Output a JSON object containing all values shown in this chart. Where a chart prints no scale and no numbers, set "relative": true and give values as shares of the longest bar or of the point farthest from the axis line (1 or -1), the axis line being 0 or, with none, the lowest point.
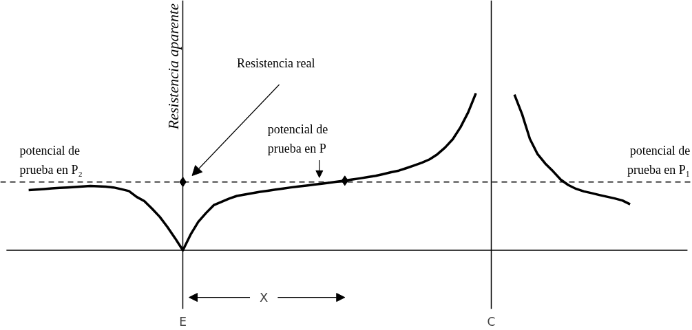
{
  "chart_data": {
    "type": "line",
    "relative": true,
    "ylabel": "Resistencia aparente",
    "categories": [
      null,
      null,
      null,
      null,
      null,
      null,
      null,
      null,
      null,
      null,
      null,
      null,
      null,
      null,
      null,
      null,
      null,
      null,
      null,
      null,
      "E",
      null,
      null,
      null,
      null,
      null,
      null,
      null,
      null,
      null,
      null,
      null,
      null,
      null,
      null,
      null,
      null,
      null,
      null,
      null,
      null,
      null,
      null,
      null,
      null,
      null,
      null,
      null,
      null,
      null,
      null,
      null,
      null,
      null,
      null,
      null,
      null,
      null,
      null,
      null,
      "C",
      null,
      null,
      null,
      null,
      null,
      null,
      null,
      null,
      null,
      null,
      null,
      null,
      null,
      null,
      null,
      null,
      null,
      null
    ],
    "grid": "x",
    "line_style": "solid",
    "marker": "none",
    "series": [
      {
        "color": "#000000",
        "values": [
          0.383,
          0.386,
          0.39,
          0.394,
          0.397,
          0.4,
          0.403,
          0.406,
          0.409,
          0.407,
          0.405,
          0.4,
          0.389,
          0.377,
          0.34,
          0.313,
          0.265,
          0.213,
          0.148,
          0.076,
          0,
          0.1,
          0.181,
          0.237,
          0.287,
          0.308,
          0.329,
          0.346,
          0.355,
          0.363,
          0.372,
          0.379,
          0.386,
          0.393,
          0.4,
          0.406,
          0.412,
          0.418,
          0.424,
          0.43,
          0.437,
          0.443,
          0.451,
          0.458,
          0.466,
          0.474,
          0.485,
          0.497,
          0.507,
          0.523,
          0.54,
          0.558,
          0.579,
          0.611,
          0.654,
          0.707,
          0.783,
          0.878,
          1,
          null,
          null,
          null,
          null,
          null,
          null,
          null,
          null,
          null,
          null,
          null,
          null,
          null,
          null,
          null,
          null,
          null,
          null,
          null,
          null
        ]
      },
      {
        "color": "#000000",
        "values": [
          null,
          null,
          null,
          null,
          null,
          null,
          null,
          null,
          null,
          null,
          null,
          null,
          null,
          null,
          null,
          null,
          null,
          null,
          null,
          null,
          null,
          null,
          null,
          null,
          null,
          null,
          null,
          null,
          null,
          null,
          null,
          null,
          null,
          null,
          null,
          null,
          null,
          null,
          null,
          null,
          null,
          null,
          null,
          null,
          null,
          null,
          null,
          null,
          null,
          null,
          null,
          null,
          null,
          null,
          null,
          null,
          null,
          null,
          null,
          null,
          null,
          null,
          null,
          0.991,
          0.865,
          0.709,
          0.612,
          0.552,
          0.503,
          0.45,
          0.415,
          0.391,
          0.375,
          0.364,
          0.352,
          0.341,
          0.33,
          0.317,
          0.293
        ]
      },
      {
        "type": "scatter",
        "marker": "diamond",
        "color": "#000000",
        "values": [
          null,
          null,
          null,
          null,
          null,
          null,
          null,
          null,
          null,
          null,
          null,
          null,
          null,
          null,
          null,
          null,
          null,
          null,
          null,
          null,
          0.435,
          null,
          null,
          null,
          null,
          null,
          null,
          null,
          null,
          null,
          null,
          null,
          null,
          null,
          null,
          null,
          null,
          null,
          null,
          null,
          null,
          0.443,
          null,
          null,
          null,
          null,
          null,
          null,
          null,
          null,
          null,
          null,
          null,
          null,
          null,
          null,
          null,
          null,
          null,
          null,
          null,
          null,
          null,
          null,
          null,
          null,
          null,
          null,
          null,
          null,
          null,
          null,
          null,
          null,
          null,
          null,
          null,
          null,
          null
        ]
      }
    ],
    "ref_lines": [
      {
        "axis": "y",
        "value": 0.435,
        "color": "#000000",
        "line_style": "dashed"
      }
    ],
    "annotations": [
      "Resistencia real",
      "potencial de\nprueba en P",
      "potencial de\nprueba en P₂",
      "potencial de\nprueba en P₁",
      "X"
    ]
  }
}
